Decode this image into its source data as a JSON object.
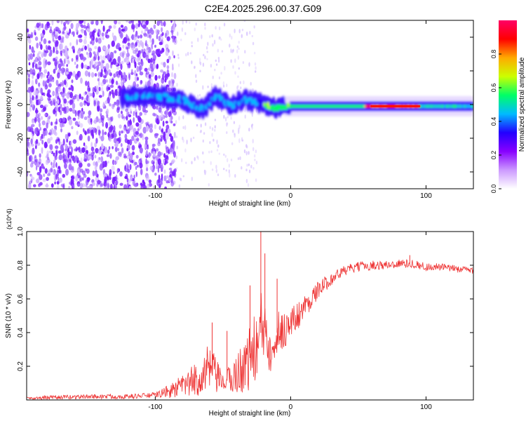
{
  "title": "C2E4.2025.296.00.37.G09",
  "chart_data": [
    {
      "type": "heatmap",
      "panel": "top",
      "xlabel": "Height of straight line (km)",
      "ylabel": "Frequency (Hz)",
      "xlim": [
        -195,
        135
      ],
      "ylim": [
        -50,
        50
      ],
      "xticks": [
        -100,
        0,
        100
      ],
      "yticks": [
        -40,
        -20,
        0,
        20,
        40
      ],
      "colorbar": {
        "label": "Normalized spectral amplitude",
        "range": [
          0,
          1
        ],
        "ticks": [
          "0.0",
          "0.2",
          "0.4",
          "0.6",
          "0.8"
        ],
        "tick_values": [
          0.0,
          0.2,
          0.4,
          0.6,
          0.8
        ],
        "colors": [
          "#ffffff",
          "#cc99ff",
          "#8800ff",
          "#2200ff",
          "#00bbff",
          "#00ff66",
          "#ccff00",
          "#ffaa00",
          "#ff0000",
          "#ff0066"
        ]
      },
      "frequency_track": [
        {
          "x": -125,
          "f": 4
        },
        {
          "x": -100,
          "f": 5
        },
        {
          "x": -80,
          "f": 3
        },
        {
          "x": -65,
          "f": -3
        },
        {
          "x": -55,
          "f": 5
        },
        {
          "x": -45,
          "f": -1
        },
        {
          "x": -35,
          "f": 3
        },
        {
          "x": -20,
          "f": 0
        },
        {
          "x": -10,
          "f": -2
        },
        {
          "x": 0,
          "f": -1
        },
        {
          "x": 50,
          "f": -1
        },
        {
          "x": 90,
          "f": -1
        },
        {
          "x": 135,
          "f": -1
        }
      ]
    },
    {
      "type": "line",
      "panel": "bottom",
      "xlabel": "Height of straight line (km)",
      "ylabel": "SNR (10 * v/v)",
      "multiplier": "(x10^4)",
      "xlim": [
        -195,
        135
      ],
      "ylim": [
        0,
        1.0
      ],
      "xticks": [
        -100,
        0,
        100
      ],
      "yticks": [
        0.2,
        0.4,
        0.6,
        0.8,
        1.0
      ],
      "color": "#ee3333",
      "trend": {
        "x": [
          -195,
          -150,
          -120,
          -100,
          -90,
          -80,
          -70,
          -60,
          -50,
          -40,
          -30,
          -25,
          -20,
          -15,
          -10,
          -5,
          0,
          10,
          20,
          30,
          40,
          50,
          60,
          70,
          80,
          90,
          100,
          110,
          120,
          135
        ],
        "y": [
          0.01,
          0.02,
          0.02,
          0.03,
          0.05,
          0.08,
          0.12,
          0.18,
          0.1,
          0.15,
          0.25,
          0.32,
          0.45,
          0.35,
          0.4,
          0.42,
          0.45,
          0.55,
          0.65,
          0.72,
          0.77,
          0.79,
          0.8,
          0.8,
          0.81,
          0.81,
          0.79,
          0.79,
          0.78,
          0.77
        ]
      },
      "noise": {
        "x": [
          -195,
          -100,
          -90,
          -70,
          -60,
          -50,
          -40,
          -30,
          -20,
          -10,
          0,
          20,
          40,
          135
        ],
        "amp": [
          0.012,
          0.015,
          0.04,
          0.1,
          0.16,
          0.05,
          0.12,
          0.2,
          0.25,
          0.14,
          0.1,
          0.05,
          0.03,
          0.02
        ]
      },
      "spikes": [
        {
          "x": -58,
          "y": 0.46
        },
        {
          "x": -47,
          "y": 0.41
        },
        {
          "x": -30,
          "y": 0.68
        },
        {
          "x": -22,
          "y": 1.0
        },
        {
          "x": -19,
          "y": 0.87
        },
        {
          "x": -10,
          "y": 0.72
        },
        {
          "x": 88,
          "y": 0.86
        }
      ]
    }
  ]
}
